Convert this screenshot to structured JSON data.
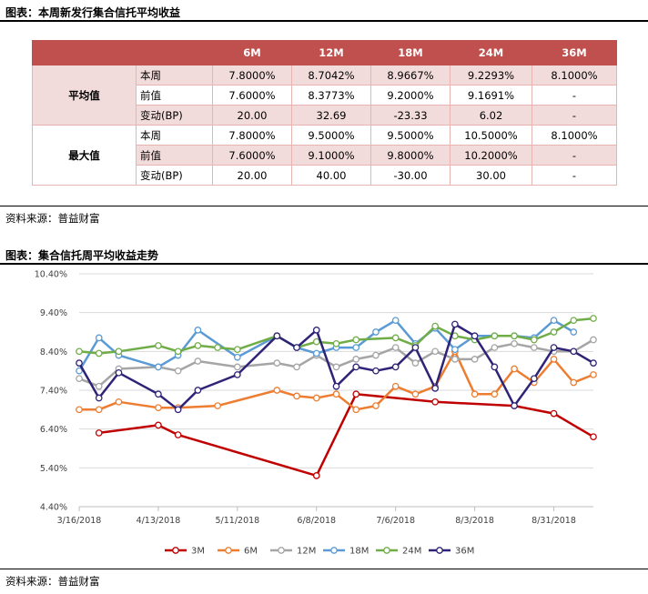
{
  "table_section": {
    "title": "图表：本周新发行集合信托平均收益",
    "headers": [
      "",
      "",
      "6M",
      "12M",
      "18M",
      "24M",
      "36M"
    ],
    "groups": [
      {
        "label": "平均值",
        "rows": [
          {
            "label": "本周",
            "values": [
              "7.8000%",
              "8.7042%",
              "8.9667%",
              "9.2293%",
              "8.1000%"
            ]
          },
          {
            "label": "前值",
            "values": [
              "7.6000%",
              "8.3773%",
              "9.2000%",
              "9.1691%",
              "-"
            ]
          },
          {
            "label": "变动(BP)",
            "values": [
              "20.00",
              "32.69",
              "-23.33",
              "6.02",
              "-"
            ]
          }
        ]
      },
      {
        "label": "最大值",
        "rows": [
          {
            "label": "本周",
            "values": [
              "7.8000%",
              "9.5000%",
              "9.5000%",
              "10.5000%",
              "8.1000%"
            ]
          },
          {
            "label": "前值",
            "values": [
              "7.6000%",
              "9.1000%",
              "9.8000%",
              "10.2000%",
              "-"
            ]
          },
          {
            "label": "变动(BP)",
            "values": [
              "20.00",
              "40.00",
              "-30.00",
              "30.00",
              "-"
            ]
          }
        ]
      }
    ],
    "source": "资料来源：普益财富"
  },
  "chart_section": {
    "title": "图表：集合信托周平均收益走势",
    "source": "资料来源：普益财富"
  },
  "chart_data": {
    "type": "line",
    "x_ticks": [
      "3/16/2018",
      "4/13/2018",
      "5/11/2018",
      "6/8/2018",
      "7/6/2018",
      "8/3/2018",
      "8/31/2018"
    ],
    "y_ticks": [
      "4.40%",
      "5.40%",
      "6.40%",
      "7.40%",
      "8.40%",
      "9.40%",
      "10.40%"
    ],
    "ylim": [
      4.4,
      10.4
    ],
    "xlim": [
      "3/16/2018",
      "9/14/2018"
    ],
    "grid": "horizontal",
    "legend_position": "bottom",
    "series": [
      {
        "name": "3M",
        "color": "#c00000",
        "points": [
          [
            "3/23/2018",
            6.3
          ],
          [
            "4/13/2018",
            6.5
          ],
          [
            "4/20/2018",
            6.25
          ],
          [
            "6/8/2018",
            5.2
          ],
          [
            "6/22/2018",
            7.3
          ],
          [
            "7/20/2018",
            7.1
          ],
          [
            "8/17/2018",
            7.0
          ],
          [
            "8/31/2018",
            6.8
          ],
          [
            "9/14/2018",
            6.2
          ]
        ]
      },
      {
        "name": "6M",
        "color": "#ed7d31",
        "points": [
          [
            "3/16/2018",
            6.9
          ],
          [
            "3/23/2018",
            6.9
          ],
          [
            "3/30/2018",
            7.1
          ],
          [
            "4/13/2018",
            6.95
          ],
          [
            "4/20/2018",
            6.95
          ],
          [
            "5/4/2018",
            7.0
          ],
          [
            "5/25/2018",
            7.4
          ],
          [
            "6/1/2018",
            7.25
          ],
          [
            "6/8/2018",
            7.2
          ],
          [
            "6/15/2018",
            7.3
          ],
          [
            "6/22/2018",
            6.9
          ],
          [
            "6/29/2018",
            7.0
          ],
          [
            "7/6/2018",
            7.5
          ],
          [
            "7/13/2018",
            7.3
          ],
          [
            "7/20/2018",
            7.5
          ],
          [
            "7/27/2018",
            8.4
          ],
          [
            "8/3/2018",
            7.3
          ],
          [
            "8/10/2018",
            7.3
          ],
          [
            "8/17/2018",
            7.95
          ],
          [
            "8/24/2018",
            7.6
          ],
          [
            "8/31/2018",
            8.2
          ],
          [
            "9/7/2018",
            7.6
          ],
          [
            "9/14/2018",
            7.8
          ]
        ]
      },
      {
        "name": "12M",
        "color": "#a5a5a5",
        "points": [
          [
            "3/16/2018",
            7.7
          ],
          [
            "3/23/2018",
            7.5
          ],
          [
            "3/30/2018",
            7.95
          ],
          [
            "4/13/2018",
            8.0
          ],
          [
            "4/20/2018",
            7.9
          ],
          [
            "4/27/2018",
            8.15
          ],
          [
            "5/11/2018",
            8.0
          ],
          [
            "5/25/2018",
            8.1
          ],
          [
            "6/1/2018",
            8.0
          ],
          [
            "6/8/2018",
            8.3
          ],
          [
            "6/15/2018",
            8.0
          ],
          [
            "6/22/2018",
            8.2
          ],
          [
            "6/29/2018",
            8.3
          ],
          [
            "7/6/2018",
            8.5
          ],
          [
            "7/13/2018",
            8.1
          ],
          [
            "7/20/2018",
            8.4
          ],
          [
            "7/27/2018",
            8.2
          ],
          [
            "8/3/2018",
            8.2
          ],
          [
            "8/10/2018",
            8.5
          ],
          [
            "8/17/2018",
            8.6
          ],
          [
            "8/24/2018",
            8.5
          ],
          [
            "8/31/2018",
            8.4
          ],
          [
            "9/7/2018",
            8.4
          ],
          [
            "9/14/2018",
            8.7
          ]
        ]
      },
      {
        "name": "18M",
        "color": "#5b9bd5",
        "points": [
          [
            "3/16/2018",
            7.9
          ],
          [
            "3/23/2018",
            8.75
          ],
          [
            "3/30/2018",
            8.3
          ],
          [
            "4/13/2018",
            8.0
          ],
          [
            "4/20/2018",
            8.3
          ],
          [
            "4/27/2018",
            8.95
          ],
          [
            "5/11/2018",
            8.25
          ],
          [
            "5/25/2018",
            8.8
          ],
          [
            "6/1/2018",
            8.5
          ],
          [
            "6/8/2018",
            8.35
          ],
          [
            "6/15/2018",
            8.5
          ],
          [
            "6/22/2018",
            8.5
          ],
          [
            "6/29/2018",
            8.9
          ],
          [
            "7/6/2018",
            9.2
          ],
          [
            "7/13/2018",
            8.6
          ],
          [
            "7/20/2018",
            9.0
          ],
          [
            "7/27/2018",
            8.45
          ],
          [
            "8/3/2018",
            8.8
          ],
          [
            "8/10/2018",
            8.8
          ],
          [
            "8/17/2018",
            8.8
          ],
          [
            "8/24/2018",
            8.75
          ],
          [
            "8/31/2018",
            9.2
          ],
          [
            "9/7/2018",
            8.9
          ]
        ]
      },
      {
        "name": "24M",
        "color": "#70ad47",
        "points": [
          [
            "3/16/2018",
            8.4
          ],
          [
            "3/23/2018",
            8.35
          ],
          [
            "3/30/2018",
            8.4
          ],
          [
            "4/13/2018",
            8.55
          ],
          [
            "4/20/2018",
            8.4
          ],
          [
            "4/27/2018",
            8.55
          ],
          [
            "5/4/2018",
            8.5
          ],
          [
            "5/11/2018",
            8.45
          ],
          [
            "5/25/2018",
            8.8
          ],
          [
            "6/1/2018",
            8.5
          ],
          [
            "6/8/2018",
            8.65
          ],
          [
            "6/15/2018",
            8.6
          ],
          [
            "6/22/2018",
            8.7
          ],
          [
            "7/6/2018",
            8.75
          ],
          [
            "7/13/2018",
            8.55
          ],
          [
            "7/20/2018",
            9.05
          ],
          [
            "7/27/2018",
            8.8
          ],
          [
            "8/3/2018",
            8.7
          ],
          [
            "8/10/2018",
            8.8
          ],
          [
            "8/17/2018",
            8.8
          ],
          [
            "8/24/2018",
            8.7
          ],
          [
            "8/31/2018",
            8.9
          ],
          [
            "9/7/2018",
            9.2
          ],
          [
            "9/14/2018",
            9.25
          ]
        ]
      },
      {
        "name": "36M",
        "color": "#2e2377",
        "points": [
          [
            "3/16/2018",
            8.1
          ],
          [
            "3/23/2018",
            7.2
          ],
          [
            "3/30/2018",
            7.85
          ],
          [
            "4/13/2018",
            7.3
          ],
          [
            "4/20/2018",
            6.9
          ],
          [
            "4/27/2018",
            7.4
          ],
          [
            "5/11/2018",
            7.8
          ],
          [
            "5/25/2018",
            8.8
          ],
          [
            "6/1/2018",
            8.5
          ],
          [
            "6/8/2018",
            8.95
          ],
          [
            "6/15/2018",
            7.5
          ],
          [
            "6/22/2018",
            8.0
          ],
          [
            "6/29/2018",
            7.9
          ],
          [
            "7/6/2018",
            8.0
          ],
          [
            "7/13/2018",
            8.5
          ],
          [
            "7/20/2018",
            7.45
          ],
          [
            "7/27/2018",
            9.1
          ],
          [
            "8/3/2018",
            8.8
          ],
          [
            "8/10/2018",
            8.0
          ],
          [
            "8/17/2018",
            7.0
          ],
          [
            "8/24/2018",
            7.7
          ],
          [
            "8/31/2018",
            8.5
          ],
          [
            "9/7/2018",
            8.4
          ],
          [
            "9/14/2018",
            8.1
          ]
        ]
      }
    ]
  }
}
